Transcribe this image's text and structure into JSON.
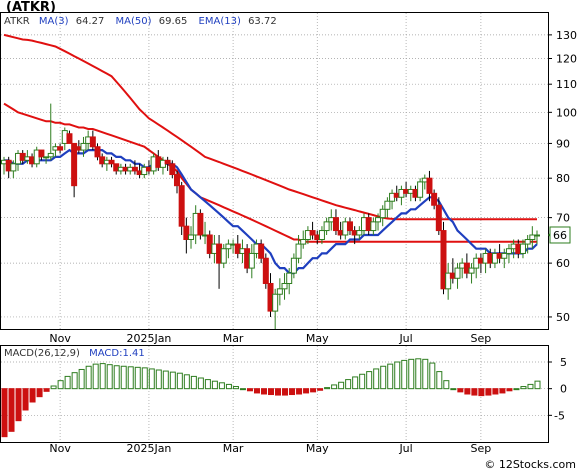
{
  "header": {
    "title": "(ATKR)"
  },
  "footer": {
    "watermark": "© 12Stocks.com"
  },
  "colors": {
    "ma3": "#1f3fbf",
    "ma50": "#e01010",
    "ema13": "#1f3fbf",
    "candle_up": "#2e7d1f",
    "candle_down": "#cc1010",
    "macd_pos": "#2e7d1f",
    "macd_neg": "#cc1010",
    "grid": "#9a9a9a"
  },
  "chart_data": [
    {
      "type": "candlestick",
      "legend": {
        "ticker": "ATKR",
        "ma3_label": "MA(3)",
        "ma3_value": "64.27",
        "ma50_label": "MA(50)",
        "ma50_value": "69.65",
        "ema13_label": "EMA(13)",
        "ema13_value": "63.72"
      },
      "last_price_label": "66",
      "y_scale": "log",
      "ylim": [
        48,
        140
      ],
      "y_ticks": [
        130,
        120,
        110,
        100,
        90,
        80,
        70,
        60,
        50
      ],
      "x_ticks": [
        "Nov",
        "2025Jan",
        "Mar",
        "May",
        "Jul",
        "Sep"
      ],
      "grid": true,
      "candles": [
        [
          84,
          86,
          81,
          85
        ],
        [
          85,
          86,
          80,
          82
        ],
        [
          82,
          85,
          80,
          84
        ],
        [
          84,
          88,
          82,
          87
        ],
        [
          87,
          88,
          84,
          85
        ],
        [
          85,
          88,
          84,
          86
        ],
        [
          86,
          87,
          83,
          84
        ],
        [
          84,
          89,
          83,
          88
        ],
        [
          88,
          88,
          85,
          86
        ],
        [
          86,
          86,
          84,
          86
        ],
        [
          86,
          103,
          85,
          87
        ],
        [
          88,
          90,
          86,
          89
        ],
        [
          89,
          90,
          87,
          88
        ],
        [
          90,
          95,
          88,
          94
        ],
        [
          93,
          94,
          90,
          90
        ],
        [
          90,
          90,
          75,
          78
        ],
        [
          89,
          91,
          87,
          88
        ],
        [
          88,
          92,
          86,
          90
        ],
        [
          90,
          94,
          88,
          92
        ],
        [
          92,
          94,
          88,
          89
        ],
        [
          89,
          90,
          85,
          86
        ],
        [
          86,
          87,
          83,
          84
        ],
        [
          84,
          86,
          82,
          85
        ],
        [
          85,
          86,
          83,
          84
        ],
        [
          84,
          84,
          81,
          82
        ],
        [
          82,
          84,
          81,
          83
        ],
        [
          83,
          84,
          81,
          82
        ],
        [
          82,
          84,
          81,
          83
        ],
        [
          83,
          85,
          81,
          82
        ],
        [
          82,
          84,
          80,
          81
        ],
        [
          81,
          84,
          80,
          83
        ],
        [
          83,
          85,
          81,
          82
        ],
        [
          82,
          87,
          81,
          86
        ],
        [
          86,
          88,
          82,
          83
        ],
        [
          83,
          86,
          81,
          85
        ],
        [
          85,
          86,
          82,
          84
        ],
        [
          84,
          85,
          80,
          81
        ],
        [
          81,
          82,
          76,
          78
        ],
        [
          78,
          79,
          66,
          68
        ],
        [
          68,
          70,
          62,
          65
        ],
        [
          65,
          68,
          63,
          66
        ],
        [
          66,
          73,
          64,
          71
        ],
        [
          71,
          72,
          65,
          66
        ],
        [
          66,
          69,
          64,
          66
        ],
        [
          66,
          67,
          61,
          62
        ],
        [
          62,
          66,
          60,
          64
        ],
        [
          64,
          66,
          55,
          60
        ],
        [
          60,
          64,
          59,
          63
        ],
        [
          63,
          65,
          61,
          64
        ],
        [
          64,
          65,
          62,
          64
        ],
        [
          64,
          66,
          61,
          62
        ],
        [
          62,
          65,
          60,
          63
        ],
        [
          63,
          64,
          58,
          59
        ],
        [
          59,
          64,
          57,
          62
        ],
        [
          62,
          65,
          61,
          64
        ],
        [
          64,
          65,
          60,
          61
        ],
        [
          61,
          62,
          55,
          56
        ],
        [
          56,
          58,
          50,
          51
        ],
        [
          51,
          55,
          48,
          54
        ],
        [
          54,
          57,
          52,
          55
        ],
        [
          55,
          58,
          53,
          56
        ],
        [
          56,
          59,
          54,
          58
        ],
        [
          58,
          62,
          57,
          61
        ],
        [
          61,
          66,
          60,
          64
        ],
        [
          64,
          67,
          63,
          65
        ],
        [
          65,
          68,
          64,
          67
        ],
        [
          67,
          69,
          65,
          66
        ],
        [
          66,
          67,
          64,
          65
        ],
        [
          65,
          68,
          64,
          67
        ],
        [
          67,
          70,
          66,
          69
        ],
        [
          69,
          72,
          67,
          70
        ],
        [
          70,
          72,
          66,
          67
        ],
        [
          67,
          69,
          65,
          66
        ],
        [
          66,
          70,
          65,
          69
        ],
        [
          69,
          70,
          66,
          67
        ],
        [
          67,
          68,
          64,
          66
        ],
        [
          66,
          68,
          65,
          67
        ],
        [
          67,
          71,
          66,
          70
        ],
        [
          70,
          71,
          66,
          67
        ],
        [
          67,
          70,
          66,
          69
        ],
        [
          69,
          71,
          67,
          70
        ],
        [
          70,
          73,
          68,
          72
        ],
        [
          72,
          75,
          70,
          74
        ],
        [
          74,
          77,
          72,
          76
        ],
        [
          76,
          78,
          74,
          75
        ],
        [
          75,
          78,
          73,
          77
        ],
        [
          77,
          79,
          75,
          76
        ],
        [
          76,
          78,
          74,
          77
        ],
        [
          77,
          78,
          74,
          75
        ],
        [
          75,
          80,
          74,
          79
        ],
        [
          79,
          81,
          77,
          80
        ],
        [
          80,
          82,
          74,
          76
        ],
        [
          76,
          77,
          72,
          73
        ],
        [
          73,
          75,
          66,
          67
        ],
        [
          67,
          69,
          54,
          55
        ],
        [
          55,
          60,
          53,
          58
        ],
        [
          58,
          61,
          56,
          57
        ],
        [
          57,
          60,
          55,
          59
        ],
        [
          59,
          61,
          57,
          60
        ],
        [
          60,
          62,
          57,
          58
        ],
        [
          58,
          60,
          56,
          59
        ],
        [
          59,
          62,
          57,
          61
        ],
        [
          61,
          62,
          58,
          60
        ],
        [
          60,
          63,
          58,
          62
        ],
        [
          62,
          63,
          59,
          60
        ],
        [
          60,
          63,
          59,
          62
        ],
        [
          62,
          64,
          60,
          61
        ],
        [
          61,
          63,
          59,
          62
        ],
        [
          62,
          64,
          60,
          63
        ],
        [
          63,
          65,
          61,
          64
        ],
        [
          64,
          65,
          61,
          62
        ],
        [
          62,
          65,
          61,
          64
        ],
        [
          64,
          66,
          62,
          65
        ],
        [
          65,
          68,
          63,
          66
        ],
        [
          66,
          67,
          64,
          66
        ]
      ],
      "ma3": [
        84,
        84,
        83,
        84,
        85,
        86,
        85,
        86,
        86,
        86,
        87,
        87,
        88,
        90,
        91,
        87,
        85,
        85,
        90,
        90,
        89,
        88,
        85,
        84,
        84,
        83,
        82,
        82,
        82,
        82,
        82,
        82,
        84,
        84,
        84,
        84,
        83,
        81,
        76,
        70,
        66,
        67,
        67,
        68,
        65,
        64,
        62,
        62,
        62,
        64,
        63,
        63,
        61,
        61,
        62,
        62,
        60,
        56,
        54,
        53,
        55,
        56,
        58,
        61,
        63,
        65,
        66,
        66,
        66,
        67,
        69,
        69,
        68,
        67,
        67,
        67,
        66,
        68,
        68,
        68,
        69,
        70,
        72,
        74,
        75,
        76,
        76,
        76,
        76,
        77,
        78,
        78,
        76,
        72,
        65,
        60,
        57,
        58,
        59,
        59,
        59,
        59,
        60,
        61,
        61,
        61,
        61,
        61,
        62,
        63,
        63,
        63,
        63,
        64,
        64
      ],
      "ema13": [
        85,
        85,
        84,
        84,
        84,
        85,
        85,
        85,
        85,
        85,
        85,
        86,
        86,
        87,
        88,
        87,
        87,
        87,
        88,
        88,
        88,
        88,
        87,
        87,
        86,
        86,
        85,
        85,
        84,
        84,
        83,
        83,
        84,
        84,
        84,
        84,
        84,
        83,
        81,
        79,
        77,
        76,
        75,
        74,
        73,
        72,
        71,
        70,
        69,
        68,
        68,
        67,
        66,
        65,
        64,
        64,
        63,
        62,
        60,
        59,
        59,
        58,
        58,
        59,
        59,
        60,
        61,
        61,
        62,
        62,
        63,
        64,
        64,
        64,
        65,
        65,
        65,
        66,
        66,
        66,
        66,
        67,
        68,
        69,
        70,
        71,
        71,
        72,
        72,
        73,
        74,
        75,
        75,
        74,
        72,
        70,
        69,
        67,
        66,
        65,
        64,
        63,
        63,
        63,
        62,
        62,
        62,
        62,
        62,
        62,
        62,
        62,
        63,
        63,
        64
      ],
      "ma50": [
        103,
        102,
        101,
        100,
        99.5,
        99,
        98.5,
        98,
        97.5,
        97,
        97,
        96.5,
        96.5,
        96,
        96,
        95.5,
        95,
        95,
        94.5,
        94.5,
        94,
        93.5,
        93,
        92.5,
        92,
        91.5,
        91,
        90.5,
        90,
        89.5,
        89,
        88,
        87,
        86,
        85,
        84,
        83,
        82,
        80,
        78.5,
        77,
        76,
        75,
        74.5,
        74,
        73.5,
        73,
        72.5,
        72,
        71.5,
        71,
        70.5,
        70,
        69.5,
        69,
        68.5,
        68,
        67.5,
        67,
        66.5,
        66,
        65.5,
        65,
        65,
        64.5,
        64.5,
        64.5,
        64.5,
        64.5,
        64.5,
        64.5,
        64.5,
        64.5,
        64.5,
        64.5,
        64.5,
        64.5,
        64.5,
        64.5,
        64.5,
        64.5,
        64.5,
        64.5,
        64.5,
        64.5,
        64.5,
        64.5,
        64.5,
        64.5,
        64.5,
        64.5,
        64.5,
        64.5,
        64.5,
        64.5,
        64.5,
        64.5,
        64.5,
        64.5,
        64.5,
        64.5,
        64.5,
        64.5,
        64.5,
        64.5,
        64.5,
        64.5,
        64.5,
        64.5,
        64.5,
        64.5,
        64.5,
        64.5,
        64.5,
        64.5
      ],
      "ma200": [
        130,
        129.5,
        129,
        128.5,
        128,
        127.8,
        127.5,
        127,
        126.5,
        126,
        125.5,
        125,
        124,
        123,
        122,
        121,
        120,
        119,
        118,
        117,
        116,
        115,
        114,
        113,
        111,
        109,
        107,
        105,
        103,
        101,
        99.5,
        98,
        97,
        96,
        95,
        94,
        93,
        92,
        91,
        90,
        89,
        88,
        87,
        86,
        85.5,
        85,
        84.5,
        84,
        83.5,
        83,
        82.5,
        82,
        81.5,
        81,
        80.5,
        80,
        79.5,
        79,
        78.5,
        78,
        77.5,
        77,
        76.6,
        76.2,
        75.8,
        75.4,
        75,
        74.6,
        74.2,
        73.8,
        73.4,
        73,
        72.7,
        72.4,
        72.1,
        71.8,
        71.5,
        71.2,
        70.9,
        70.6,
        70.3,
        70,
        69.8,
        69.7,
        69.6,
        69.6,
        69.6,
        69.6,
        69.6,
        69.6,
        69.6,
        69.6,
        69.6,
        69.6,
        69.6,
        69.6,
        69.6,
        69.6,
        69.6,
        69.6,
        69.6,
        69.6,
        69.6,
        69.6,
        69.6,
        69.6,
        69.6,
        69.6,
        69.6,
        69.6,
        69.6,
        69.6,
        69.6,
        69.6,
        69.6
      ]
    },
    {
      "type": "bar",
      "legend": {
        "label": "MACD(26,12,9)",
        "value_label": "MACD:1.41"
      },
      "ylim": [
        -10,
        8
      ],
      "y_ticks": [
        5,
        0,
        -5
      ],
      "x_ticks": [
        "Nov",
        "2025Jan",
        "Mar",
        "May",
        "Jul",
        "Sep"
      ],
      "grid": true,
      "values": [
        -9,
        -8,
        -6,
        -4,
        -2.5,
        -1.5,
        -0.5,
        0.5,
        1.5,
        2.3,
        3,
        3.6,
        4.2,
        4.6,
        4.7,
        4.5,
        4.3,
        4.2,
        4.1,
        4.0,
        3.9,
        3.7,
        3.5,
        3.3,
        3.1,
        2.9,
        2.6,
        2.3,
        2.0,
        1.7,
        1.4,
        1.1,
        0.8,
        0.4,
        0,
        -0.4,
        -0.8,
        -1.0,
        -1.1,
        -1.2,
        -1.2,
        -1.1,
        -1.0,
        -0.8,
        -0.6,
        -0.3,
        0.2,
        0.7,
        1.2,
        1.7,
        2.2,
        2.7,
        3.2,
        3.7,
        4.2,
        4.6,
        5.0,
        5.3,
        5.5,
        5.6,
        5.5,
        4.8,
        3.2,
        1.5,
        0,
        -0.6,
        -1.0,
        -1.2,
        -1.3,
        -1.2,
        -1.0,
        -0.8,
        -0.4,
        0,
        0.4,
        0.8,
        1.41
      ]
    }
  ]
}
